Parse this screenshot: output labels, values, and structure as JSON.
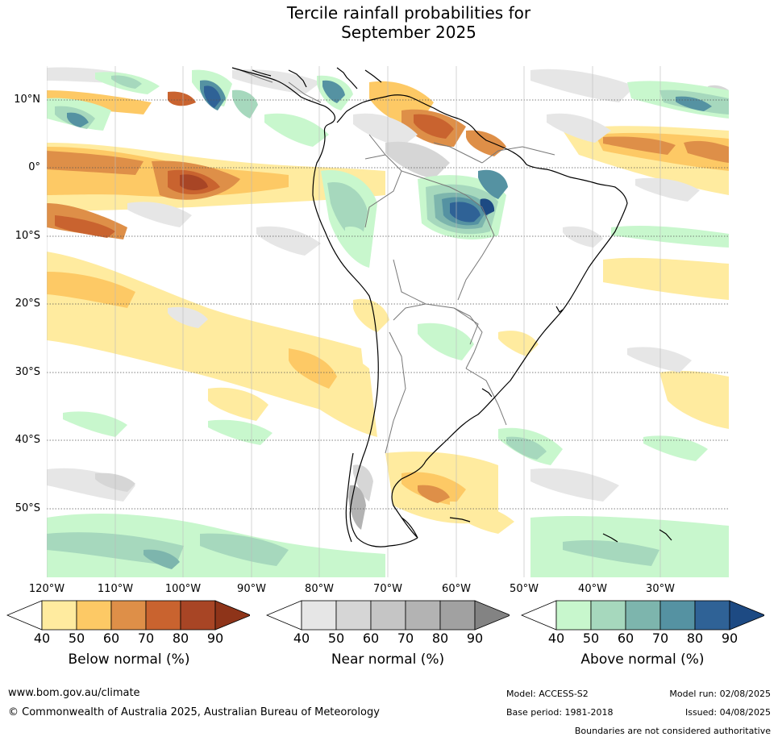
{
  "title_line1": "Tercile rainfall probabilities for",
  "title_line2": "September 2025",
  "lat_labels": [
    "10°N",
    "0°",
    "10°S",
    "20°S",
    "30°S",
    "40°S",
    "50°S"
  ],
  "lon_labels": [
    "120°W",
    "110°W",
    "100°W",
    "90°W",
    "80°W",
    "70°W",
    "60°W",
    "50°W",
    "40°W",
    "30°W"
  ],
  "legends": [
    {
      "title": "Below normal (%)",
      "ticks": [
        "40",
        "50",
        "60",
        "70",
        "80",
        "90"
      ],
      "colors": [
        "#ffffff",
        "#ffeb9f",
        "#fdc965",
        "#de8f48",
        "#c9632f",
        "#a84525",
        "#8e3419"
      ]
    },
    {
      "title": "Near normal (%)",
      "ticks": [
        "40",
        "50",
        "60",
        "70",
        "80",
        "90"
      ],
      "colors": [
        "#ffffff",
        "#e6e6e6",
        "#d6d6d6",
        "#c5c5c5",
        "#b3b3b3",
        "#a1a1a1",
        "#838383"
      ]
    },
    {
      "title": "Above normal (%)",
      "ticks": [
        "40",
        "50",
        "60",
        "70",
        "80",
        "90"
      ],
      "colors": [
        "#ffffff",
        "#c8f7cd",
        "#a6d8bd",
        "#7db5ad",
        "#5592a2",
        "#2f6296",
        "#1d4a83"
      ]
    }
  ],
  "footer": {
    "website": "www.bom.gov.au/climate",
    "copyright": "© Commonwealth of Australia 2025, Australian Bureau of Meteorology",
    "model": "Model: ACCESS-S2",
    "base_period": "Base period: 1981-2018",
    "model_run": "Model run: 02/08/2025",
    "issued": "Issued: 04/08/2025",
    "disclaimer": "Boundaries are not considered authoritative"
  }
}
